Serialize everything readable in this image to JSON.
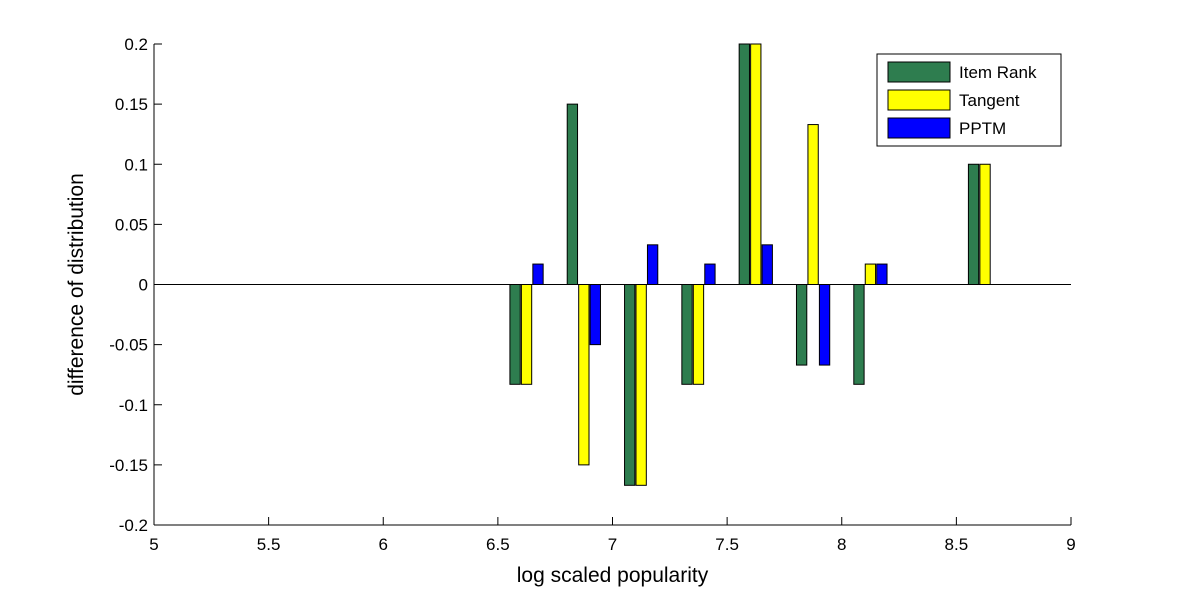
{
  "chart_data": {
    "type": "bar",
    "title": "",
    "xlabel": "log scaled popularity",
    "ylabel": "difference of distribution",
    "xlim": [
      5,
      9
    ],
    "ylim": [
      -0.2,
      0.2
    ],
    "xticks": [
      "5",
      "5.5",
      "6",
      "6.5",
      "7",
      "7.5",
      "8",
      "8.5",
      "9"
    ],
    "yticks": [
      "-0.2",
      "-0.15",
      "-0.1",
      "-0.05",
      "0",
      "0.05",
      "0.1",
      "0.15",
      "0.2"
    ],
    "x": [
      6.625,
      6.875,
      7.125,
      7.375,
      7.625,
      7.875,
      8.125,
      8.625
    ],
    "series": [
      {
        "name": "Item Rank",
        "color": "#2e7d4f",
        "values": [
          -0.083,
          0.15,
          -0.167,
          -0.083,
          0.2,
          -0.067,
          -0.083,
          0.1
        ]
      },
      {
        "name": "Tangent",
        "color": "#ffff00",
        "values": [
          -0.083,
          -0.15,
          -0.167,
          -0.083,
          0.2,
          0.133,
          0.017,
          0.1
        ]
      },
      {
        "name": "PPTM",
        "color": "#0000ff",
        "values": [
          0.017,
          -0.05,
          0.033,
          0.017,
          0.033,
          -0.067,
          0.017,
          0
        ]
      }
    ],
    "grid": false,
    "legend_position": "top-right"
  }
}
